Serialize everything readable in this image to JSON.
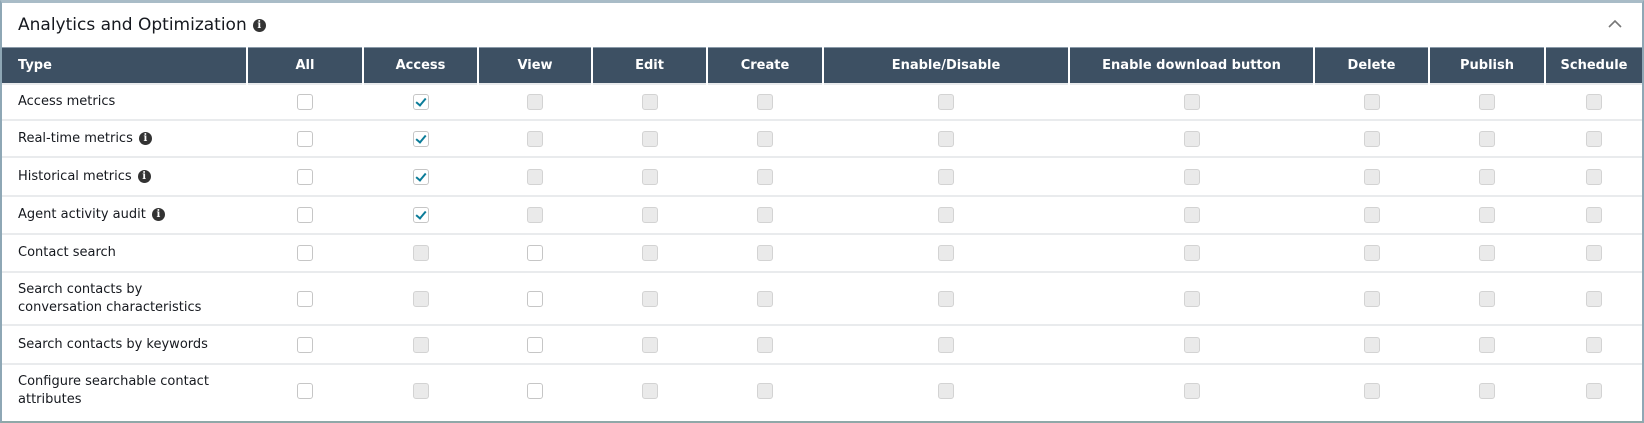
{
  "section": {
    "title": "Analytics and Optimization",
    "info_icon": "info-icon",
    "collapse_icon": "chevron-up-icon"
  },
  "columns": [
    "Type",
    "All",
    "Access",
    "View",
    "Edit",
    "Create",
    "Enable/Disable",
    "Enable download button",
    "Delete",
    "Publish",
    "Schedule"
  ],
  "colors": {
    "header_bg": "#3d5063",
    "check": "#0b7c99"
  },
  "rows": [
    {
      "label": "Access metrics",
      "info": false,
      "states": [
        "unchecked",
        "checked",
        "disabled",
        "disabled",
        "disabled",
        "disabled",
        "disabled",
        "disabled",
        "disabled",
        "disabled"
      ]
    },
    {
      "label": "Real-time metrics",
      "info": true,
      "states": [
        "unchecked",
        "checked",
        "disabled",
        "disabled",
        "disabled",
        "disabled",
        "disabled",
        "disabled",
        "disabled",
        "disabled"
      ]
    },
    {
      "label": "Historical metrics",
      "info": true,
      "states": [
        "unchecked",
        "checked",
        "disabled",
        "disabled",
        "disabled",
        "disabled",
        "disabled",
        "disabled",
        "disabled",
        "disabled"
      ]
    },
    {
      "label": "Agent activity audit",
      "info": true,
      "states": [
        "unchecked",
        "checked",
        "disabled",
        "disabled",
        "disabled",
        "disabled",
        "disabled",
        "disabled",
        "disabled",
        "disabled"
      ]
    },
    {
      "label": "Contact search",
      "info": false,
      "states": [
        "unchecked",
        "disabled",
        "unchecked",
        "disabled",
        "disabled",
        "disabled",
        "disabled",
        "disabled",
        "disabled",
        "disabled"
      ]
    },
    {
      "label": "Search contacts by conversation characteristics",
      "info": false,
      "states": [
        "unchecked",
        "disabled",
        "unchecked",
        "disabled",
        "disabled",
        "disabled",
        "disabled",
        "disabled",
        "disabled",
        "disabled"
      ]
    },
    {
      "label": "Search contacts by keywords",
      "info": false,
      "states": [
        "unchecked",
        "disabled",
        "unchecked",
        "disabled",
        "disabled",
        "disabled",
        "disabled",
        "disabled",
        "disabled",
        "disabled"
      ]
    },
    {
      "label": "Configure searchable contact attributes",
      "info": false,
      "states": [
        "unchecked",
        "disabled",
        "unchecked",
        "disabled",
        "disabled",
        "disabled",
        "disabled",
        "disabled",
        "disabled",
        "disabled"
      ]
    }
  ]
}
